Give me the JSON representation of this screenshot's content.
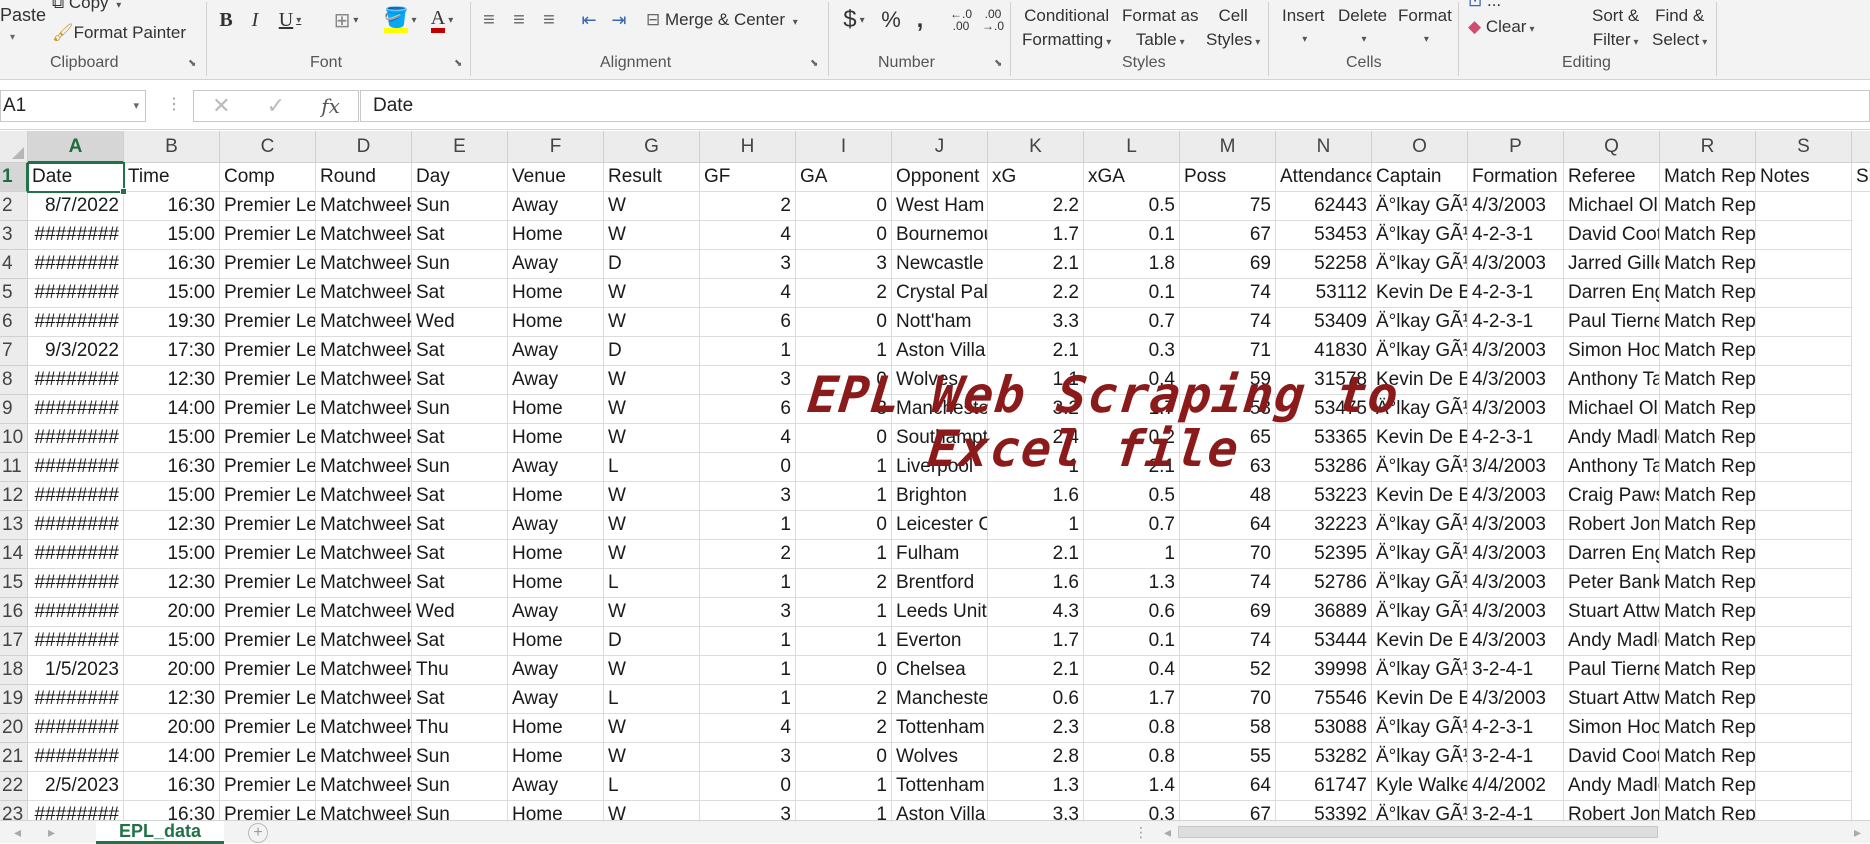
{
  "ribbon": {
    "paste_label": "Paste",
    "copy_label": "Copy",
    "format_painter_label": "Format Painter",
    "merge_center_label": "Merge & Center",
    "dollar_symbol": "$",
    "percent_symbol": "%",
    "comma_symbol": ",",
    "increase_decimal_label": "←.0 .00",
    "decrease_decimal_label": ".00 →.0",
    "conditional_formatting_line1": "Conditional",
    "conditional_formatting_line2": "Formatting",
    "format_as_table_line1": "Format as",
    "format_as_table_line2": "Table",
    "cell_styles_line1": "Cell",
    "cell_styles_line2": "Styles",
    "insert_label": "Insert",
    "delete_label": "Delete",
    "format_label": "Format",
    "clear_label": "Clear",
    "sort_filter_line1": "Sort &",
    "sort_filter_line2": "Filter",
    "find_select_line1": "Find &",
    "find_select_line2": "Select",
    "groups": {
      "clipboard": "Clipboard",
      "font": "Font",
      "alignment": "Alignment",
      "number": "Number",
      "styles": "Styles",
      "cells": "Cells",
      "editing": "Editing"
    },
    "font_color_accent": "#c00000",
    "highlight_accent": "#ffff00"
  },
  "formula_bar": {
    "name_box": "A1",
    "content": "Date"
  },
  "columns": [
    "A",
    "B",
    "C",
    "D",
    "E",
    "F",
    "G",
    "H",
    "I",
    "J",
    "K",
    "L",
    "M",
    "N",
    "O",
    "P",
    "Q",
    "R",
    "S"
  ],
  "column_last_partial": "S",
  "rows": [
    {
      "n": "1",
      "cells": [
        "Date",
        "Time",
        "Comp",
        "Round",
        "Day",
        "Venue",
        "Result",
        "GF",
        "GA",
        "Opponent",
        "xG",
        "xGA",
        "Poss",
        "Attendance",
        "Captain",
        "Formation",
        "Referee",
        "Match Report",
        "Notes"
      ],
      "last": "Sh"
    },
    {
      "n": "2",
      "cells": [
        "8/7/2022",
        "16:30",
        "Premier League",
        "Matchweek",
        "Sun",
        "Away",
        "W",
        "2",
        "0",
        "West Ham",
        "2.2",
        "0.5",
        "75",
        "62443",
        "Ä°lkay GÃ¼ndoÄŸan",
        "4/3/2003",
        "Michael Oliver",
        "Match Report",
        ""
      ]
    },
    {
      "n": "3",
      "cells": [
        "########",
        "15:00",
        "Premier League",
        "Matchweek",
        "Sat",
        "Home",
        "W",
        "4",
        "0",
        "Bournemouth",
        "1.7",
        "0.1",
        "67",
        "53453",
        "Ä°lkay GÃ¼ndoÄŸan",
        "4-2-3-1",
        "David Coote",
        "Match Report",
        ""
      ]
    },
    {
      "n": "4",
      "cells": [
        "########",
        "16:30",
        "Premier League",
        "Matchweek",
        "Sun",
        "Away",
        "D",
        "3",
        "3",
        "Newcastle",
        "2.1",
        "1.8",
        "69",
        "52258",
        "Ä°lkay GÃ¼ndoÄŸan",
        "4/3/2003",
        "Jarred Gillett",
        "Match Report",
        ""
      ]
    },
    {
      "n": "5",
      "cells": [
        "########",
        "15:00",
        "Premier League",
        "Matchweek",
        "Sat",
        "Home",
        "W",
        "4",
        "2",
        "Crystal Palace",
        "2.2",
        "0.1",
        "74",
        "53112",
        "Kevin De Bruyne",
        "4-2-3-1",
        "Darren England",
        "Match Report",
        ""
      ]
    },
    {
      "n": "6",
      "cells": [
        "########",
        "19:30",
        "Premier League",
        "Matchweek",
        "Wed",
        "Home",
        "W",
        "6",
        "0",
        "Nott'ham",
        "3.3",
        "0.7",
        "74",
        "53409",
        "Ä°lkay GÃ¼ndoÄŸan",
        "4-2-3-1",
        "Paul Tierney",
        "Match Report",
        ""
      ]
    },
    {
      "n": "7",
      "cells": [
        "9/3/2022",
        "17:30",
        "Premier League",
        "Matchweek",
        "Sat",
        "Away",
        "D",
        "1",
        "1",
        "Aston Villa",
        "2.1",
        "0.3",
        "71",
        "41830",
        "Ä°lkay GÃ¼ndoÄŸan",
        "4/3/2003",
        "Simon Hooper",
        "Match Report",
        ""
      ]
    },
    {
      "n": "8",
      "cells": [
        "########",
        "12:30",
        "Premier League",
        "Matchweek",
        "Sat",
        "Away",
        "W",
        "3",
        "0",
        "Wolves",
        "1.1",
        "0.4",
        "59",
        "31578",
        "Kevin De Bruyne",
        "4/3/2003",
        "Anthony Taylor",
        "Match Report",
        ""
      ]
    },
    {
      "n": "9",
      "cells": [
        "########",
        "14:00",
        "Premier League",
        "Matchweek",
        "Sun",
        "Home",
        "W",
        "6",
        "3",
        "Manchester",
        "3.2",
        "1.7",
        "53",
        "53475",
        "Ä°lkay GÃ¼ndoÄŸan",
        "4/3/2003",
        "Michael Oliver",
        "Match Report",
        ""
      ]
    },
    {
      "n": "10",
      "cells": [
        "########",
        "15:00",
        "Premier League",
        "Matchweek",
        "Sat",
        "Home",
        "W",
        "4",
        "0",
        "Southampton",
        "2.4",
        "0.2",
        "65",
        "53365",
        "Kevin De Bruyne",
        "4-2-3-1",
        "Andy Madley",
        "Match Report",
        ""
      ]
    },
    {
      "n": "11",
      "cells": [
        "########",
        "16:30",
        "Premier League",
        "Matchweek",
        "Sun",
        "Away",
        "L",
        "0",
        "1",
        "Liverpool",
        "1",
        "2.1",
        "63",
        "53286",
        "Ä°lkay GÃ¼ndoÄŸan",
        "3/4/2003",
        "Anthony Taylor",
        "Match Report",
        ""
      ]
    },
    {
      "n": "12",
      "cells": [
        "########",
        "15:00",
        "Premier League",
        "Matchweek",
        "Sat",
        "Home",
        "W",
        "3",
        "1",
        "Brighton",
        "1.6",
        "0.5",
        "48",
        "53223",
        "Kevin De Bruyne",
        "4/3/2003",
        "Craig Pawson",
        "Match Report",
        ""
      ]
    },
    {
      "n": "13",
      "cells": [
        "########",
        "12:30",
        "Premier League",
        "Matchweek",
        "Sat",
        "Away",
        "W",
        "1",
        "0",
        "Leicester City",
        "1",
        "0.7",
        "64",
        "32223",
        "Ä°lkay GÃ¼ndoÄŸan",
        "4/3/2003",
        "Robert Jones",
        "Match Report",
        ""
      ]
    },
    {
      "n": "14",
      "cells": [
        "########",
        "15:00",
        "Premier League",
        "Matchweek",
        "Sat",
        "Home",
        "W",
        "2",
        "1",
        "Fulham",
        "2.1",
        "1",
        "70",
        "52395",
        "Ä°lkay GÃ¼ndoÄŸan",
        "4/3/2003",
        "Darren England",
        "Match Report",
        ""
      ]
    },
    {
      "n": "15",
      "cells": [
        "########",
        "12:30",
        "Premier League",
        "Matchweek",
        "Sat",
        "Home",
        "L",
        "1",
        "2",
        "Brentford",
        "1.6",
        "1.3",
        "74",
        "52786",
        "Ä°lkay GÃ¼ndoÄŸan",
        "4/3/2003",
        "Peter Bankes",
        "Match Report",
        ""
      ]
    },
    {
      "n": "16",
      "cells": [
        "########",
        "20:00",
        "Premier League",
        "Matchweek",
        "Wed",
        "Away",
        "W",
        "3",
        "1",
        "Leeds United",
        "4.3",
        "0.6",
        "69",
        "36889",
        "Ä°lkay GÃ¼ndoÄŸan",
        "4/3/2003",
        "Stuart Attwell",
        "Match Report",
        ""
      ]
    },
    {
      "n": "17",
      "cells": [
        "########",
        "15:00",
        "Premier League",
        "Matchweek",
        "Sat",
        "Home",
        "D",
        "1",
        "1",
        "Everton",
        "1.7",
        "0.1",
        "74",
        "53444",
        "Kevin De Bruyne",
        "4/3/2003",
        "Andy Madley",
        "Match Report",
        ""
      ]
    },
    {
      "n": "18",
      "cells": [
        "1/5/2023",
        "20:00",
        "Premier League",
        "Matchweek",
        "Thu",
        "Away",
        "W",
        "1",
        "0",
        "Chelsea",
        "2.1",
        "0.4",
        "52",
        "39998",
        "Ä°lkay GÃ¼ndoÄŸan",
        "3-2-4-1",
        "Paul Tierney",
        "Match Report",
        ""
      ]
    },
    {
      "n": "19",
      "cells": [
        "########",
        "12:30",
        "Premier League",
        "Matchweek",
        "Sat",
        "Away",
        "L",
        "1",
        "2",
        "Manchester",
        "0.6",
        "1.7",
        "70",
        "75546",
        "Kevin De Bruyne",
        "4/3/2003",
        "Stuart Attwell",
        "Match Report",
        ""
      ]
    },
    {
      "n": "20",
      "cells": [
        "########",
        "20:00",
        "Premier League",
        "Matchweek",
        "Thu",
        "Home",
        "W",
        "4",
        "2",
        "Tottenham",
        "2.3",
        "0.8",
        "58",
        "53088",
        "Ä°lkay GÃ¼ndoÄŸan",
        "4-2-3-1",
        "Simon Hooper",
        "Match Report",
        ""
      ]
    },
    {
      "n": "21",
      "cells": [
        "########",
        "14:00",
        "Premier League",
        "Matchweek",
        "Sun",
        "Home",
        "W",
        "3",
        "0",
        "Wolves",
        "2.8",
        "0.8",
        "55",
        "53282",
        "Ä°lkay GÃ¼ndoÄŸan",
        "3-2-4-1",
        "David Coote",
        "Match Report",
        ""
      ]
    },
    {
      "n": "22",
      "cells": [
        "2/5/2023",
        "16:30",
        "Premier League",
        "Matchweek",
        "Sun",
        "Away",
        "L",
        "0",
        "1",
        "Tottenham",
        "1.3",
        "1.4",
        "64",
        "61747",
        "Kyle Walker",
        "4/4/2002",
        "Andy Madley",
        "Match Report",
        ""
      ]
    },
    {
      "n": "23",
      "cells": [
        "########",
        "16:30",
        "Premier League",
        "Matchweek",
        "Sun",
        "Home",
        "W",
        "3",
        "1",
        "Aston Villa",
        "3.3",
        "0.3",
        "67",
        "53392",
        "Ä°lkay GÃ¼ndoÄŸan",
        "3-2-4-1",
        "Robert Jones",
        "Match Report",
        ""
      ]
    }
  ],
  "overlay": {
    "line1": "EPL Web Scraping to",
    "line2": "Excel file",
    "color": "#8b1a1a"
  },
  "sheet_tab": "EPL_data",
  "accent_color": "#217346"
}
